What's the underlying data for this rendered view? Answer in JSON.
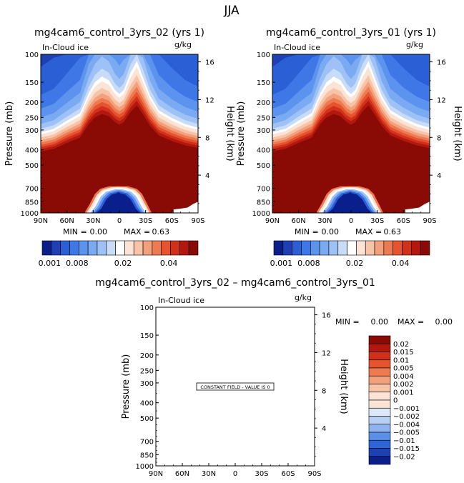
{
  "page": {
    "season": "JJA",
    "diff_title": "mg4cam6_control_3yrs_02 – mg4cam6_control_3yrs_01"
  },
  "panels": [
    {
      "title": "mg4cam6_control_3yrs_02 (yrs 1)",
      "field": "In-Cloud ice",
      "units": "g/kg",
      "min_label": "MIN =",
      "min_value": "0.00",
      "max_label": "MAX =",
      "max_value": "0.63",
      "colorbar_labels": [
        "0.001",
        "0.008",
        "0.02",
        "0.04"
      ]
    },
    {
      "title": "mg4cam6_control_3yrs_01 (yrs 1)",
      "field": "In-Cloud ice",
      "units": "g/kg",
      "min_label": "MIN =",
      "min_value": "0.00",
      "max_label": "MAX =",
      "max_value": "0.63",
      "colorbar_labels": [
        "0.001",
        "0.008",
        "0.02",
        "0.04"
      ]
    },
    {
      "field": "In-Cloud ice",
      "units": "g/kg",
      "min_label": "MIN =",
      "min_value": "0.00",
      "max_label": "MAX =",
      "max_value": "0.00",
      "note": "CONSTANT FIELD - VALUE IS 0",
      "colorbar_labels": [
        "0.02",
        "0.015",
        "0.01",
        "0.005",
        "0.004",
        "0.002",
        "0.001",
        "0",
        "−0.001",
        "−0.002",
        "−0.004",
        "−0.005",
        "−0.01",
        "−0.015",
        "−0.02"
      ]
    }
  ],
  "chart_data": {
    "type": "heatmap",
    "ylabel": "Pressure (mb)",
    "y2label": "Height (km)",
    "x_ticks": [
      "90N",
      "60N",
      "30N",
      "0",
      "30S",
      "60S",
      "90S"
    ],
    "x_values": [
      90,
      60,
      30,
      0,
      -30,
      -60,
      -90
    ],
    "y_ticks": [
      "100",
      "150",
      "200",
      "250",
      "300",
      "400",
      "500",
      "700",
      "850",
      "1000"
    ],
    "y_values": [
      100,
      150,
      200,
      250,
      300,
      400,
      500,
      700,
      850,
      1000
    ],
    "y2_ticks": [
      "4",
      "8",
      "12",
      "16"
    ],
    "y2_values": [
      4,
      8,
      12,
      16
    ],
    "ylim": [
      100,
      1000
    ],
    "xlim": [
      90,
      -90
    ],
    "colors": {
      "blues": [
        "#0b1f8c",
        "#1f3fb5",
        "#2b5fd6",
        "#3f78e6",
        "#5b93ee",
        "#7aaaf2",
        "#9ec2f5",
        "#c8dcf8"
      ],
      "reds": [
        "#fbe3d6",
        "#f7c4a8",
        "#f3a07c",
        "#ee7a52",
        "#e5532f",
        "#d1301a",
        "#b2180e",
        "#8a0a06"
      ],
      "abs_colorbar": [
        "#0b1f8c",
        "#1f3fb5",
        "#2b5fd6",
        "#3f78e6",
        "#5b93ee",
        "#7aaaf2",
        "#9ec2f5",
        "#c8dcf8",
        "#ffffff",
        "#fbe3d6",
        "#f7c4a8",
        "#f3a07c",
        "#ee7a52",
        "#e5532f",
        "#d1301a",
        "#b2180e",
        "#8a0a06"
      ],
      "diff_colorbar": [
        "#8a0a06",
        "#b2180e",
        "#d1301a",
        "#e5532f",
        "#ee7a52",
        "#f3a07c",
        "#f7c4a8",
        "#fbe3d6",
        "#fbe3d6",
        "#dbe8f8",
        "#b9d0f5",
        "#8fb3f0",
        "#5b8fe8",
        "#2f63d8",
        "#1f3fb5",
        "#0b1f8c"
      ]
    }
  }
}
